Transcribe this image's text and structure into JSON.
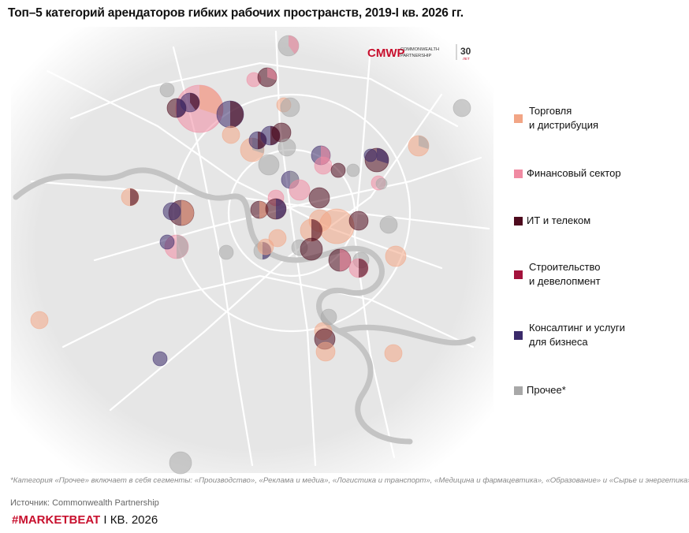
{
  "title": "Топ–5 категорий арендаторов гибких рабочих пространств, 2019-I кв. 2026 гг.",
  "logo": {
    "mark": "CMWP",
    "line1": "COMMONWEALTH",
    "line2": "PARTNERSHIP",
    "years": "30",
    "years_unit": "ЛЕТ"
  },
  "legend": [
    {
      "label": [
        "Торговля",
        "и дистрибуция"
      ],
      "color": "#f2a585"
    },
    {
      "label": [
        "Финансовый сектор"
      ],
      "color": "#f08aa2"
    },
    {
      "label": [
        "ИТ и телеком"
      ],
      "color": "#4e0b1e"
    },
    {
      "label": [
        "Строительство",
        "и девелопмент"
      ],
      "color": "#a3123c"
    },
    {
      "label": [
        "Консалтинг и услуги",
        "для бизнеса"
      ],
      "color": "#3a2a6a"
    },
    {
      "label": [
        "Прочее*"
      ],
      "color": "#a8a8a8"
    }
  ],
  "footnote": "*Категория «Прочее» включает в себя сегменты: «Производство», «Реклама и медиа», «Логистика и транспорт», «Медицина и фармацевтика», «Образование» и «Сырье и энергетика».",
  "source": "Источник: Commonwealth Partnership",
  "brand": {
    "tag": "#MARKETBEAT",
    "period": "I КВ. 2026"
  }
}
